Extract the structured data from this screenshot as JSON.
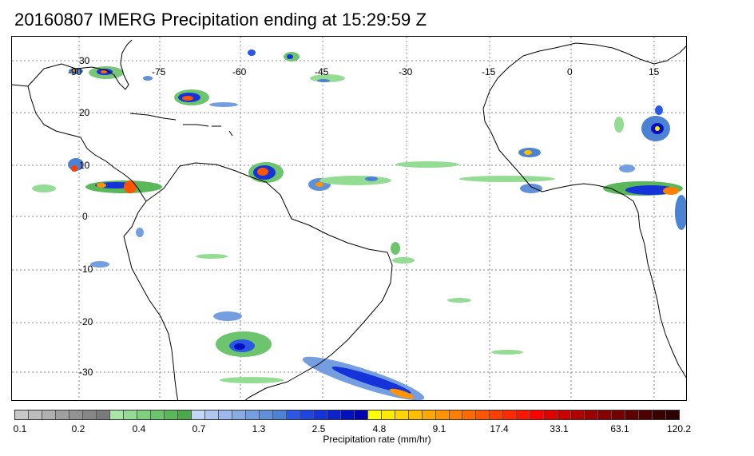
{
  "title": "20160807 IMERG Precipitation ending at 15:29:59 Z",
  "map": {
    "lon_labels": [
      "-90",
      "-75",
      "-60",
      "-45",
      "-30",
      "-15",
      "0",
      "15"
    ],
    "lat_labels": [
      "30",
      "20",
      "10",
      "0",
      "-10",
      "-20",
      "-30"
    ],
    "grid": true,
    "coastline_color": "#000000",
    "gridline_color": "#888888"
  },
  "colorbar": {
    "colors": [
      "#c8c8c8",
      "#bdbdbd",
      "#b0b0b0",
      "#a0a0a0",
      "#939393",
      "#868686",
      "#7a7a7a",
      "#a8e6a8",
      "#94dc94",
      "#7fd07f",
      "#6cc46c",
      "#5ab75a",
      "#4aa84a",
      "#c4d6f5",
      "#b0c8f0",
      "#9cbaeb",
      "#88ace6",
      "#749ee0",
      "#6090da",
      "#4c82d4",
      "#2a57e6",
      "#1f45e0",
      "#1533d8",
      "#0b22cc",
      "#0211c0",
      "#0000b0",
      "#ffff00",
      "#ffea00",
      "#ffd500",
      "#ffbf00",
      "#ffa900",
      "#ff9400",
      "#ff7f00",
      "#ff6900",
      "#ff5400",
      "#ff3f00",
      "#ff2a00",
      "#ff1500",
      "#ff0000",
      "#e00000",
      "#c80000",
      "#b00000",
      "#9a0000",
      "#860000",
      "#720000",
      "#5e0000",
      "#4c0000",
      "#3a0000",
      "#2c0000"
    ],
    "ticks": [
      "0.1",
      "0.2",
      "0.4",
      "0.7",
      "1.3",
      "2.5",
      "4.8",
      "9.1",
      "17.4",
      "33.1",
      "63.1",
      "120.2"
    ],
    "axis_label": "Precipitation rate (mm/hr)"
  }
}
